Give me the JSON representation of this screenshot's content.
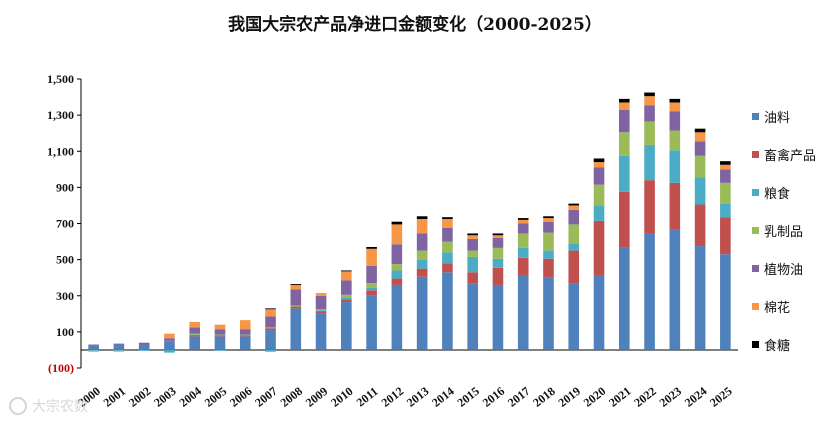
{
  "watermark": "大宗农数",
  "chart_data": {
    "type": "bar",
    "stacked": true,
    "title": "我国大宗农产品净进口金额变化（2000-2025）",
    "categories": [
      "2000",
      "2001",
      "2002",
      "2003",
      "2004",
      "2005",
      "2006",
      "2007",
      "2008",
      "2009",
      "2010",
      "2011",
      "2012",
      "2013",
      "2014",
      "2015",
      "2016",
      "2017",
      "2018",
      "2019",
      "2020",
      "2021",
      "2022",
      "2023",
      "2024",
      "2025"
    ],
    "ylim": [
      -100,
      1500
    ],
    "yticks": [
      {
        "v": 1500,
        "label": "1,500"
      },
      {
        "v": 1300,
        "label": "1,300"
      },
      {
        "v": 1100,
        "label": "1,100"
      },
      {
        "v": 900,
        "label": "900"
      },
      {
        "v": 700,
        "label": "700"
      },
      {
        "v": 500,
        "label": "500"
      },
      {
        "v": 300,
        "label": "300"
      },
      {
        "v": 100,
        "label": "100"
      },
      {
        "v": -100,
        "label": "(100)"
      }
    ],
    "series": [
      {
        "name": "油料",
        "color": "#4f81bd",
        "values": [
          25,
          30,
          30,
          45,
          75,
          75,
          75,
          110,
          230,
          200,
          265,
          300,
          360,
          405,
          430,
          370,
          360,
          415,
          400,
          370,
          415,
          565,
          645,
          665,
          575,
          530
        ]
      },
      {
        "name": "畜禽产品",
        "color": "#c0504d",
        "values": [
          0,
          0,
          0,
          5,
          5,
          5,
          5,
          10,
          10,
          15,
          15,
          30,
          35,
          45,
          50,
          60,
          95,
          95,
          105,
          180,
          300,
          310,
          295,
          260,
          230,
          205
        ]
      },
      {
        "name": "粮食",
        "color": "#4bacc6",
        "values": [
          -5,
          -5,
          -5,
          -15,
          5,
          -5,
          0,
          -10,
          0,
          5,
          10,
          15,
          45,
          50,
          60,
          85,
          50,
          55,
          45,
          40,
          85,
          200,
          195,
          180,
          150,
          75
        ]
      },
      {
        "name": "乳制品",
        "color": "#9bbb59",
        "values": [
          0,
          0,
          0,
          0,
          5,
          5,
          5,
          5,
          5,
          5,
          15,
          25,
          35,
          50,
          60,
          35,
          60,
          80,
          100,
          105,
          115,
          130,
          130,
          110,
          120,
          115
        ]
      },
      {
        "name": "植物油",
        "color": "#8064a2",
        "values": [
          5,
          5,
          10,
          15,
          35,
          30,
          30,
          60,
          90,
          75,
          80,
          95,
          110,
          95,
          75,
          65,
          55,
          55,
          60,
          80,
          95,
          125,
          90,
          105,
          80,
          75
        ]
      },
      {
        "name": "棉花",
        "color": "#f79646",
        "values": [
          -5,
          -5,
          0,
          25,
          30,
          25,
          50,
          40,
          25,
          15,
          50,
          95,
          110,
          80,
          50,
          20,
          15,
          20,
          20,
          25,
          30,
          40,
          50,
          50,
          50,
          25
        ]
      },
      {
        "name": "食糖",
        "color": "#000000",
        "values": [
          0,
          0,
          0,
          0,
          0,
          0,
          0,
          5,
          5,
          0,
          5,
          10,
          15,
          15,
          10,
          10,
          10,
          10,
          10,
          10,
          20,
          20,
          20,
          20,
          20,
          20
        ]
      }
    ]
  }
}
